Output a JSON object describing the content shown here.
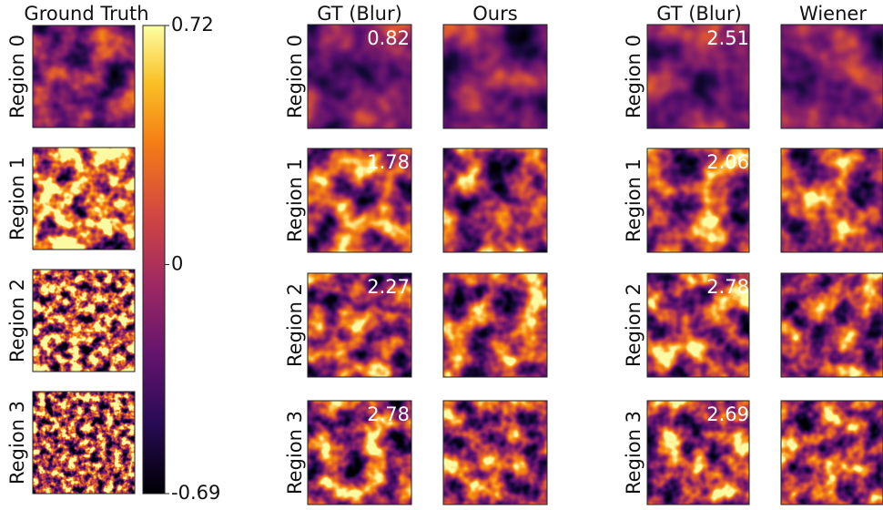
{
  "ground_truth": {
    "title": "Ground Truth",
    "row_labels": [
      "Region 0",
      "Region 1",
      "Region 2",
      "Region 3"
    ]
  },
  "colorbar": {
    "ticks": [
      0.72,
      0,
      -0.69
    ]
  },
  "groups": [
    {
      "columns": [
        "GT (Blur)",
        "Ours"
      ],
      "row_labels": [
        "Region 0",
        "Region 1",
        "Region 2",
        "Region 3"
      ],
      "scores": [
        0.82,
        1.78,
        2.27,
        2.78
      ]
    },
    {
      "columns": [
        "GT (Blur)",
        "Wiener"
      ],
      "row_labels": [
        "Region 0",
        "Region 1",
        "Region 2",
        "Region 3"
      ],
      "scores": [
        2.51,
        2.06,
        2.78,
        2.69
      ]
    }
  ]
}
